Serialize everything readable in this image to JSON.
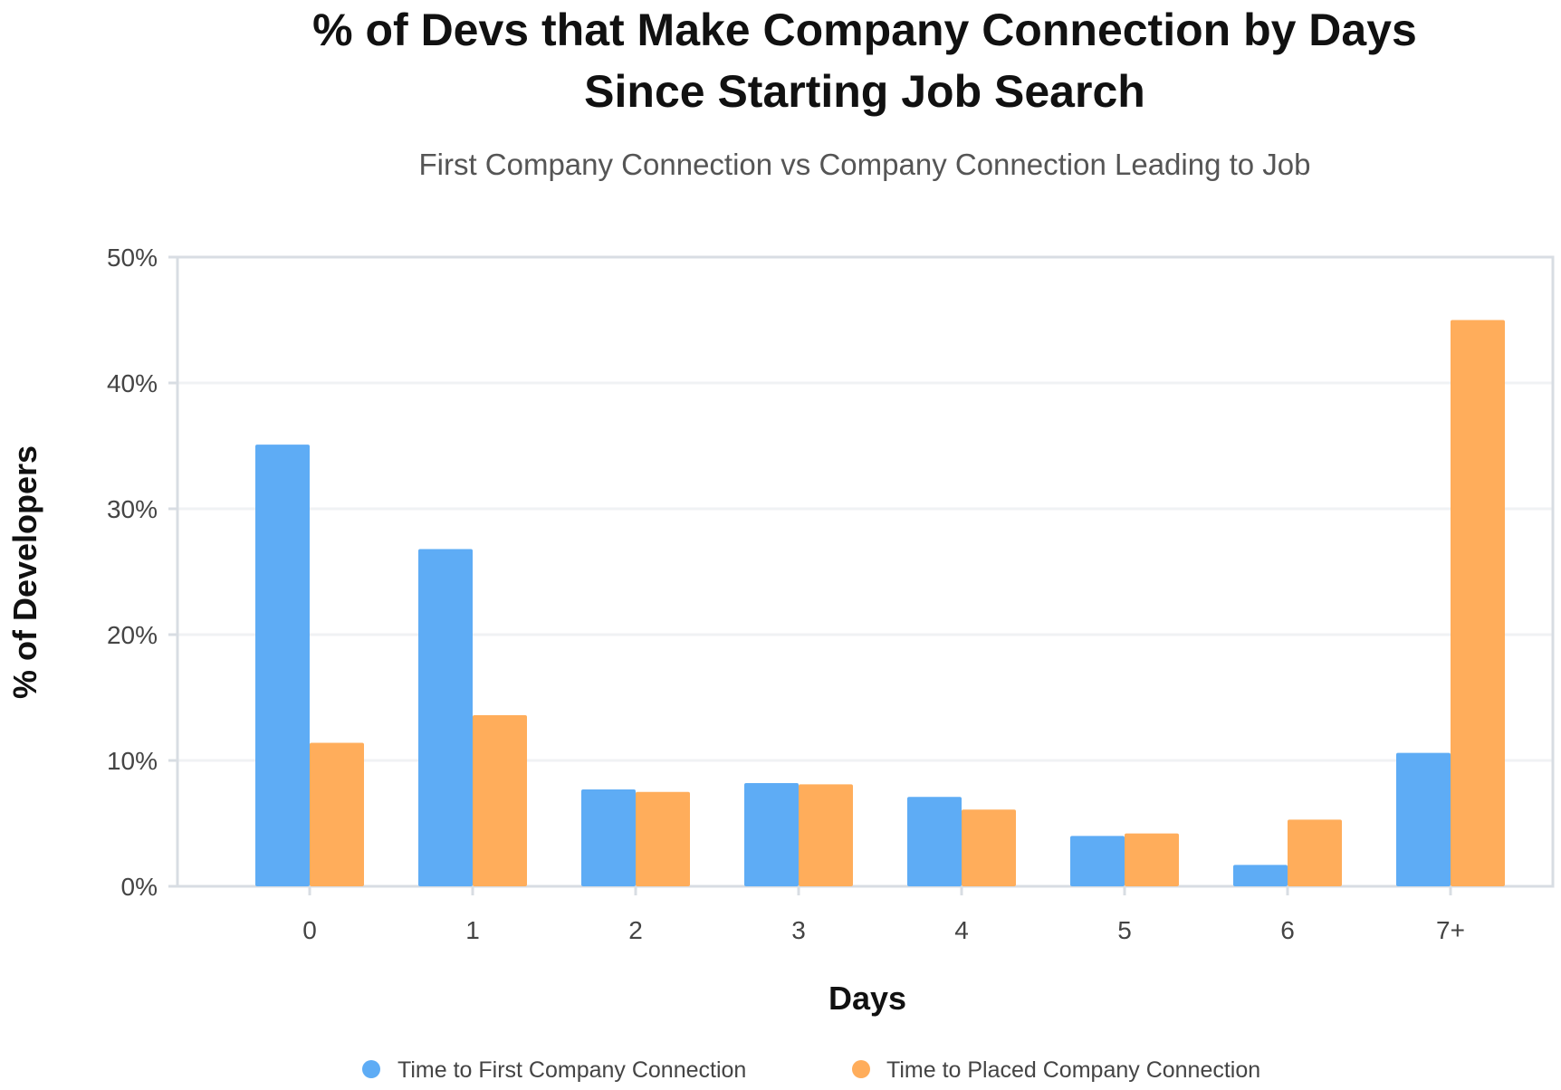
{
  "chart_data": {
    "type": "bar",
    "title_lines": [
      "% of Devs that Make Company Connection by Days",
      "Since Starting Job Search"
    ],
    "subtitle": "First Company Connection vs Company Connection Leading to Job",
    "xlabel": "Days",
    "ylabel": "% of Developers",
    "categories": [
      "0",
      "1",
      "2",
      "3",
      "4",
      "5",
      "6",
      "7+"
    ],
    "ylim": [
      0,
      50
    ],
    "yticks": [
      0,
      10,
      20,
      30,
      40,
      50
    ],
    "ytick_labels": [
      "0%",
      "10%",
      "20%",
      "30%",
      "40%",
      "50%"
    ],
    "grid": true,
    "legend_position": "bottom",
    "series": [
      {
        "name": "Time to First Company Connection",
        "color": "#5eacf5",
        "values": [
          35.1,
          26.8,
          7.7,
          8.2,
          7.1,
          4.0,
          1.7,
          10.6
        ]
      },
      {
        "name": "Time to Placed Company Connection",
        "color": "#ffad5b",
        "values": [
          11.4,
          13.6,
          7.5,
          8.1,
          6.1,
          4.2,
          5.3,
          45.0
        ]
      }
    ]
  }
}
